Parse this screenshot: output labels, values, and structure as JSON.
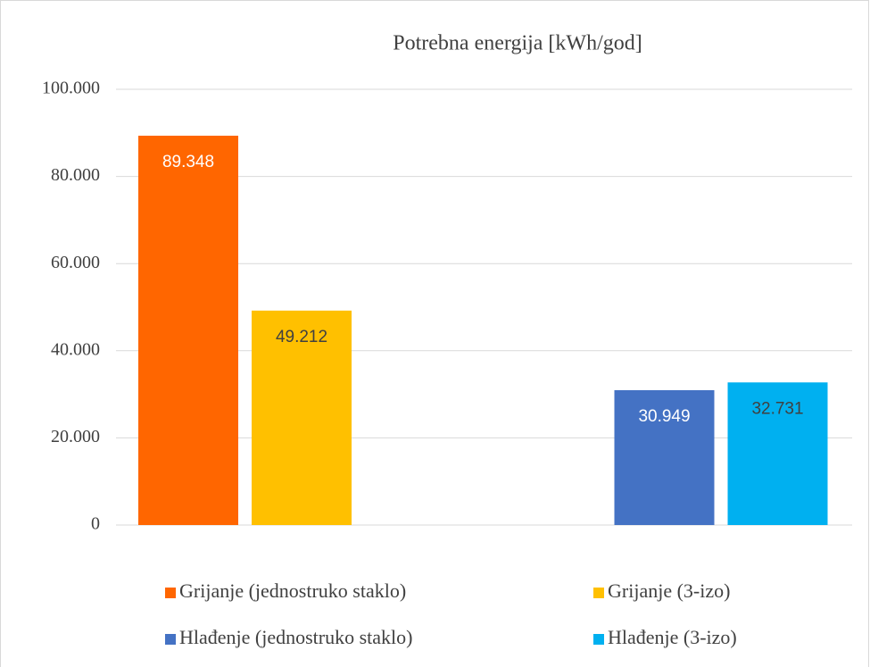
{
  "chart_data": {
    "type": "bar",
    "title": "Potrebna energija [kWh/god]",
    "categories": [
      null,
      null
    ],
    "series": [
      {
        "name": "Grijanje (jednostruko staklo)",
        "color": "#ff6600",
        "values": [
          89348,
          null
        ],
        "value_labels": [
          "89.348",
          null
        ]
      },
      {
        "name": "Grijanje (3-izo)",
        "color": "#ffc000",
        "values": [
          49212,
          null
        ],
        "value_labels": [
          "49.212",
          null
        ]
      },
      {
        "name": "Hlađenje (jednostruko staklo)",
        "color": "#4472c4",
        "values": [
          null,
          30949
        ],
        "value_labels": [
          null,
          "30.949"
        ]
      },
      {
        "name": "Hlađenje (3-izo)",
        "color": "#00b0f0",
        "values": [
          null,
          32731
        ],
        "value_labels": [
          null,
          "32.731"
        ]
      }
    ],
    "ylim": [
      0,
      100000
    ],
    "yticks": [
      0,
      {
        "value": 20000,
        "label": "20.000"
      },
      {
        "value": 40000,
        "label": "40.000"
      },
      {
        "value": 60000,
        "label": "60.000"
      },
      {
        "value": 80000,
        "label": "80.000"
      },
      {
        "value": 100000,
        "label": "100.000"
      }
    ],
    "grid": true,
    "legend": "bottom"
  }
}
